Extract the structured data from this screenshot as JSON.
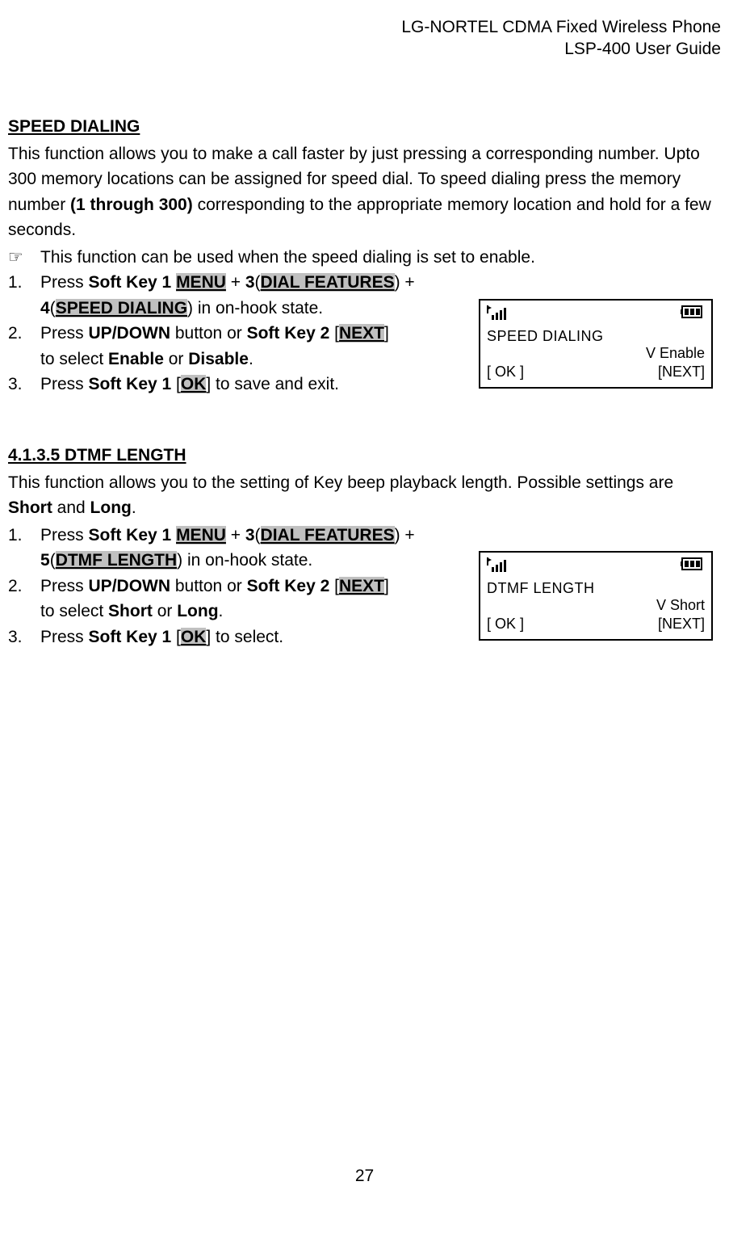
{
  "header": {
    "line1": "LG-NORTEL CDMA Fixed Wireless Phone",
    "line2": "LSP-400 User Guide"
  },
  "section1": {
    "title": "SPEED DIALING",
    "intro_html": "This function allows you to make a call faster by just pressing a corresponding number. Upto 300 memory locations can be assigned for speed dial. To speed dialing press the memory number <b>(1 through 300)</b> corresponding to the appropriate memory location and hold for a few seconds.",
    "note": "This function can be used when the speed dialing is set to enable.",
    "step1_a_html": "Press <b>Soft Key 1</b> <span class='hl'>MENU</span> + <b>3</b>(<span class='hl'>DIAL FEATURES</span>) +",
    "step1_b_html": "<b>4</b>(<span class='hl'>SPEED DIALING</span>) in on-hook state.",
    "step2_a_html": "Press <b>UP/DOWN</b> button or <b>Soft Key 2</b> [<span class='hl'>NEXT</span>]",
    "step2_b_html": "to select <b>Enable</b> or <b>Disable</b>.",
    "step3_html": "Press <b>Soft Key 1</b> [<span class='hl'>OK</span>] to save and exit.",
    "lcd": {
      "title": "SPEED DIALING",
      "value": "V  Enable",
      "ok": "[  OK  ]",
      "next": "[NEXT]"
    }
  },
  "section2": {
    "title": "4.1.3.5 DTMF LENGTH",
    "intro_html": "This function allows you to the setting of Key beep playback length. Possible settings are <b>Short</b> and <b>Long</b>.",
    "step1_a_html": "Press <b>Soft Key 1</b> <span class='hl'>MENU</span> + <b>3</b>(<span class='hl'>DIAL FEATURES</span>) +",
    "step1_b_html": "<b>5</b>(<span class='hl'>DTMF LENGTH</span>) in on-hook state.",
    "step2_a_html": "Press <b>UP/DOWN</b> button or <b>Soft Key 2</b> [<span class='hl'>NEXT</span>]",
    "step2_b_html": "to select <b>Short</b> or <b>Long</b>.",
    "step3_html": "Press <b>Soft Key 1</b> [<span class='hl'>OK</span>] to select.",
    "lcd": {
      "title": "DTMF LENGTH",
      "value": "V  Short",
      "ok": "[  OK  ]",
      "next": "[NEXT]"
    }
  },
  "page_number": "27"
}
